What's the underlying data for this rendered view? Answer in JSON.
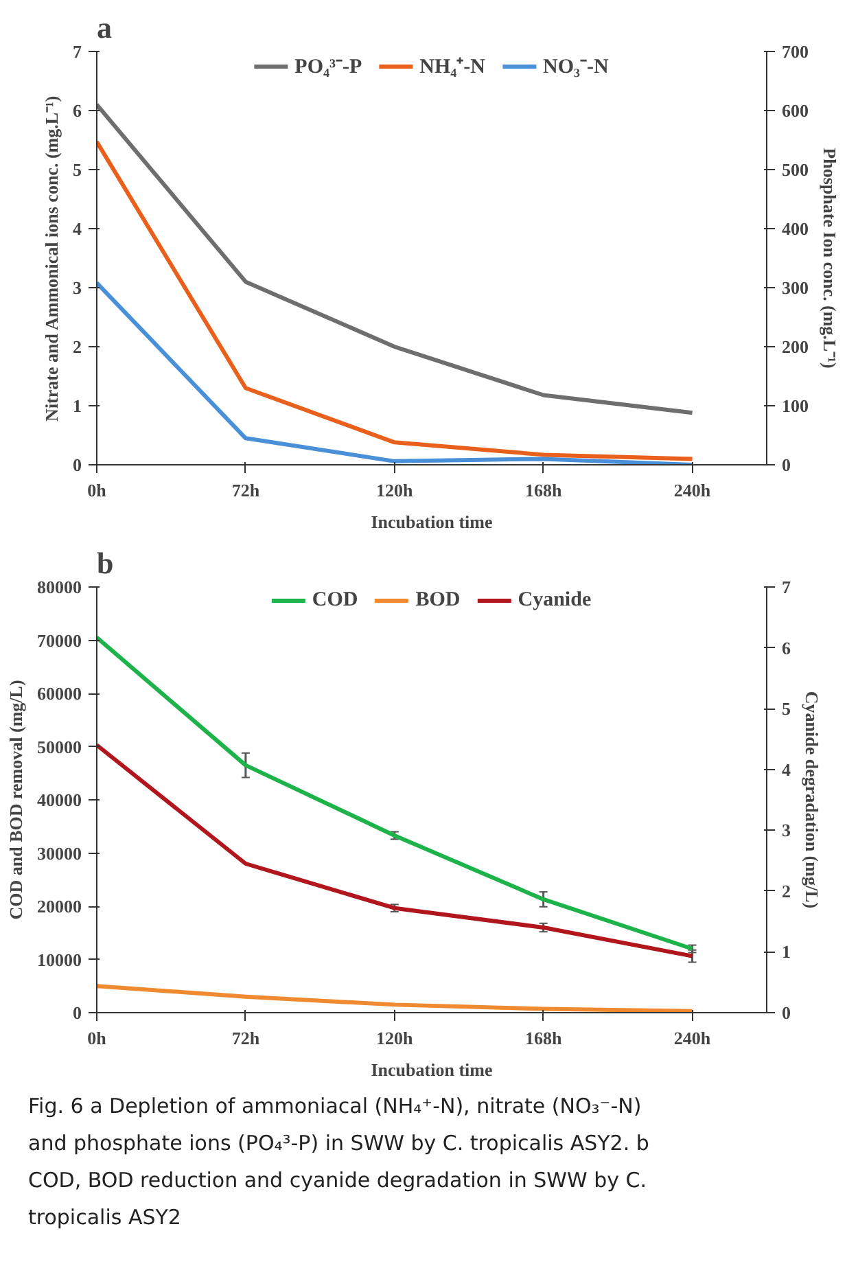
{
  "chart_data": [
    {
      "type": "line",
      "title": "a",
      "categories": [
        "0h",
        "72h",
        "120h",
        "168h",
        "240h"
      ],
      "xlabel": "Incubation time",
      "ylabel": "Nitrate and Ammonical ions conc. (mg.L⁻¹)",
      "y2label": "Phosphate Ion conc. (mg.L⁻¹)",
      "ylim": [
        0,
        7
      ],
      "yticks": [
        0,
        1,
        2,
        3,
        4,
        5,
        6,
        7
      ],
      "y2lim": [
        0,
        700
      ],
      "y2ticks": [
        0,
        100,
        200,
        300,
        400,
        500,
        600,
        700
      ],
      "legend": "top",
      "grid": false,
      "series": [
        {
          "name": "PO₄³⁻-P",
          "color": "#6e6e6e",
          "axis": "y2",
          "values": [
            610,
            310,
            200,
            118,
            88
          ]
        },
        {
          "name": "NH₄⁺-N",
          "color": "#e8601c",
          "values": [
            5.47,
            1.3,
            0.38,
            0.17,
            0.1
          ]
        },
        {
          "name": "NO₃⁻-N",
          "color": "#4a90d9",
          "values": [
            3.08,
            0.45,
            0.06,
            0.1,
            0.0
          ]
        }
      ]
    },
    {
      "type": "line",
      "title": "b",
      "categories": [
        "0h",
        "72h",
        "120h",
        "168h",
        "240h"
      ],
      "xlabel": "Incubation time",
      "ylabel": "COD and BOD removal (mg/L)",
      "y2label": "Cyanide degradation (mg/L)",
      "ylim": [
        0,
        80000
      ],
      "yticks": [
        0,
        10000,
        20000,
        30000,
        40000,
        50000,
        60000,
        70000,
        80000
      ],
      "y2lim": [
        0,
        7
      ],
      "y2ticks": [
        0,
        1,
        2,
        3,
        4,
        5,
        6,
        7
      ],
      "legend": "top",
      "grid": false,
      "series": [
        {
          "name": "COD",
          "color": "#1db34a",
          "values": [
            70500,
            46500,
            33300,
            21300,
            12000
          ],
          "errors": [
            null,
            2300,
            700,
            1400,
            700
          ]
        },
        {
          "name": "BOD",
          "color": "#f08a30",
          "values": [
            5000,
            3000,
            1500,
            700,
            300
          ]
        },
        {
          "name": "Cyanide",
          "color": "#b0161c",
          "axis": "y2",
          "values": [
            4.4,
            2.45,
            1.72,
            1.4,
            0.93
          ],
          "errors": [
            null,
            null,
            0.06,
            0.07,
            0.1
          ]
        }
      ],
      "annotations": [
        "Fig. 6 a Depletion of ammoniacal (NH₄⁺-N), nitrate (NO₃⁻-N) and phosphate ions (PO₄³-P) in SWW by C. tropicalis ASY2. b COD, BOD reduction and cyanide degradation in SWW by C. tropicalis ASY2"
      ]
    }
  ]
}
